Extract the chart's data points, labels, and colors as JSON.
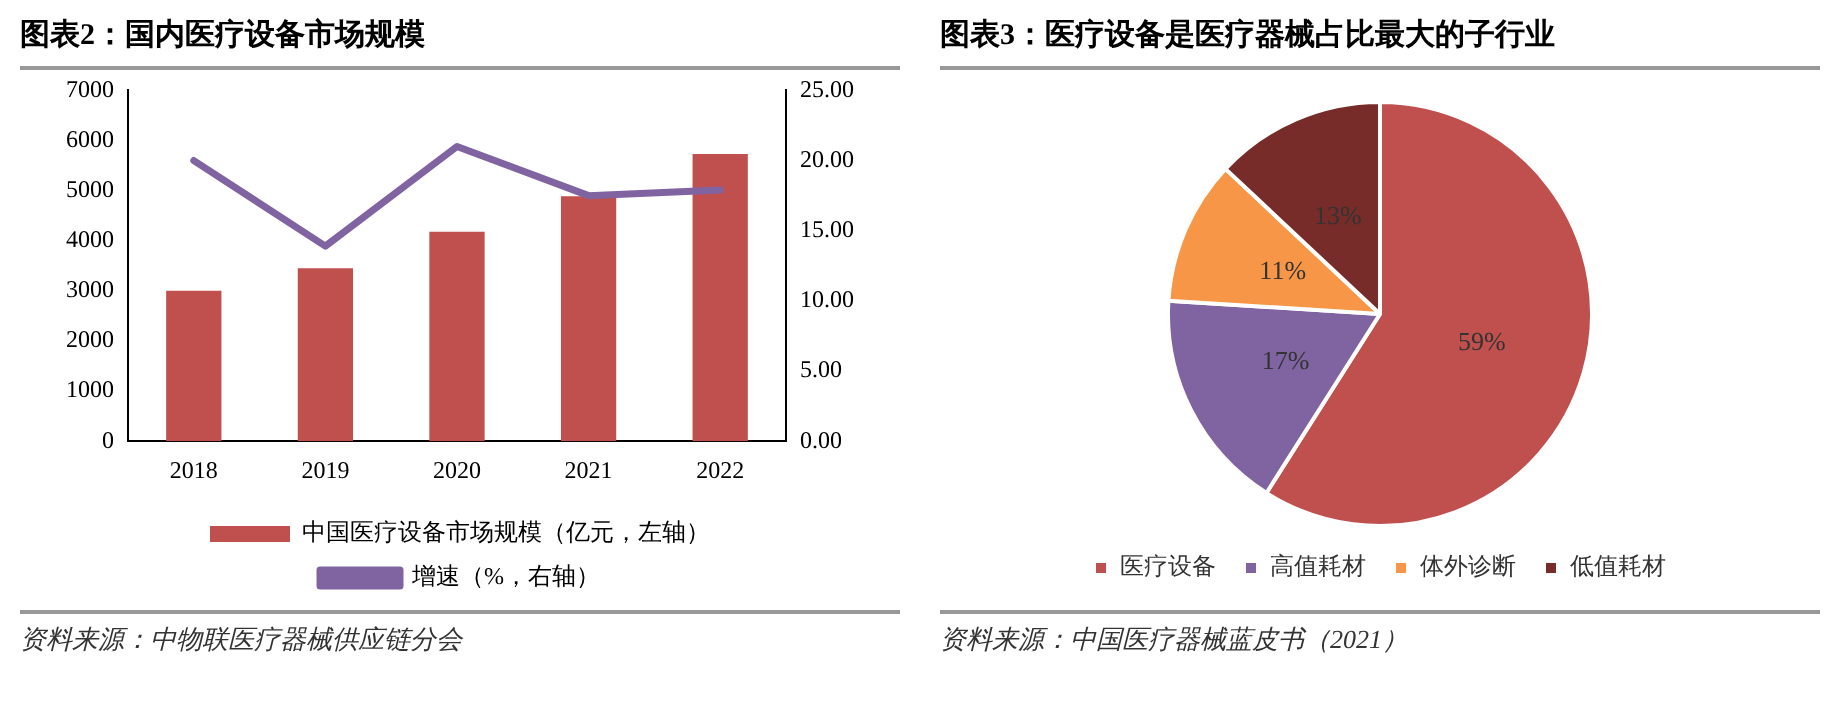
{
  "chart_data": [
    {
      "type": "bar",
      "title": "图表2：国内医疗设备市场规模",
      "categories": [
        "2018",
        "2019",
        "2020",
        "2021",
        "2022"
      ],
      "series": [
        {
          "name": "中国医疗设备市场规模（亿元，左轴）",
          "type": "bar",
          "color": "#c0504d",
          "values": [
            3000,
            3450,
            4180,
            4890,
            5730
          ]
        },
        {
          "name": "增速（%，右轴）",
          "type": "line",
          "axis": "y2",
          "color": "#8064a2",
          "values": [
            20.0,
            13.9,
            21.0,
            17.5,
            17.9
          ]
        }
      ],
      "ylim": [
        0,
        7000
      ],
      "yticks": [
        0,
        1000,
        2000,
        3000,
        4000,
        5000,
        6000,
        7000
      ],
      "y2lim": [
        0,
        25
      ],
      "y2ticks": [
        {
          "value": 0,
          "label": "0.00"
        },
        {
          "value": 5,
          "label": "5.00"
        },
        {
          "value": 10,
          "label": "10.00"
        },
        {
          "value": 15,
          "label": "15.00"
        },
        {
          "value": 20,
          "label": "20.00"
        },
        {
          "value": 25,
          "label": "25.00"
        }
      ],
      "grid": false,
      "legend": "bottom",
      "marker": "none",
      "line_style": "solid",
      "annotations": [
        "资料来源：中物联医疗器械供应链分会"
      ]
    },
    {
      "type": "pie",
      "title": "图表3：医疗设备是医疗器械占比最大的子行业",
      "categories": [
        "医疗设备",
        "高值耗材",
        "体外诊断",
        "低值耗材"
      ],
      "values": [
        59,
        17,
        11,
        13
      ],
      "colors": [
        "#c0504d",
        "#8064a2",
        "#f79646",
        "#772c2a"
      ],
      "value_labels": [
        "59%",
        "17%",
        "11%",
        "13%"
      ],
      "legend": "bottom",
      "annotations": [
        "资料来源：中国医疗器械蓝皮书（2021）"
      ]
    }
  ]
}
